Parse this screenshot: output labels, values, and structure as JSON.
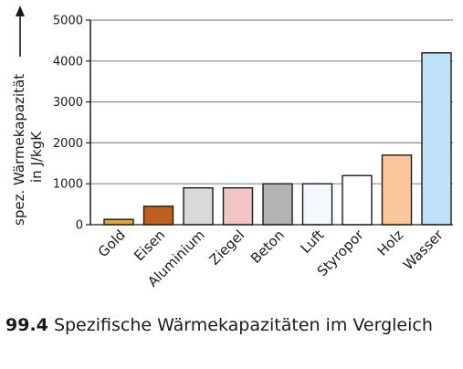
{
  "chart_data": {
    "type": "bar",
    "ylabel_line1": "spez. Wärmekapazität",
    "ylabel_line2": "in J/kgK",
    "ylim": [
      0,
      5000
    ],
    "yticks": [
      0,
      1000,
      2000,
      3000,
      4000,
      5000
    ],
    "categories": [
      "Gold",
      "Eisen",
      "Aluminium",
      "Ziegel",
      "Beton",
      "Luft",
      "Styropor",
      "Holz",
      "Wasser"
    ],
    "values": [
      130,
      450,
      900,
      900,
      1000,
      1000,
      1200,
      1700,
      4200
    ],
    "colors": [
      "#e6a531",
      "#c0601e",
      "#d9d9d9",
      "#f2c4c4",
      "#b3b3b3",
      "#f4f9ff",
      "#ffffff",
      "#fac898",
      "#bfe2f9"
    ],
    "grid": true
  },
  "caption": {
    "number": "99.4",
    "text": "Spezifische Wärmekapazitäten im Vergleich"
  }
}
